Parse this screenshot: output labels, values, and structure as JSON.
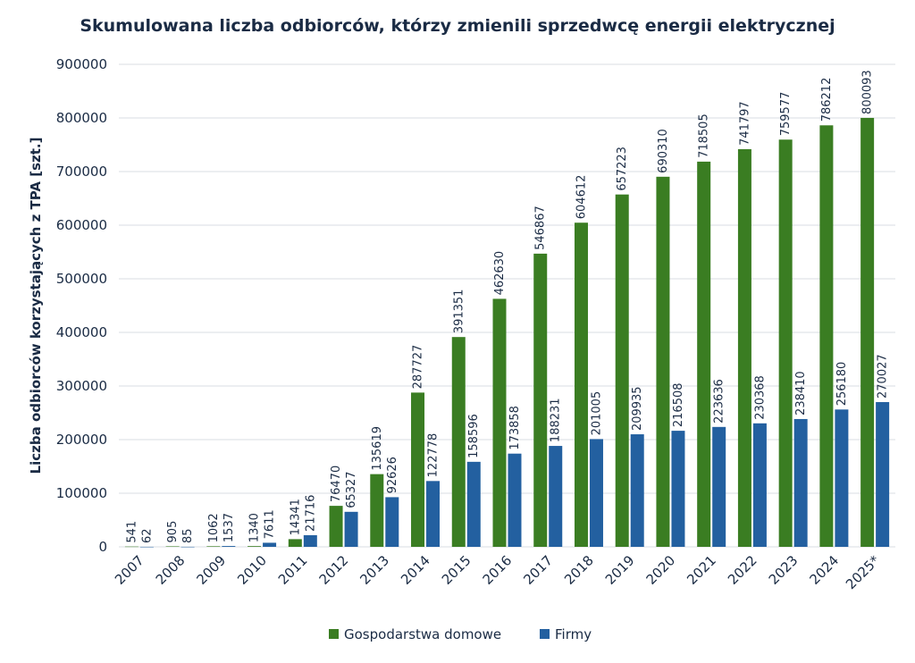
{
  "chart_data": {
    "type": "bar",
    "title": "Skumulowana liczba odbiorców, którzy zmienili sprzedwcę energii elektrycznej",
    "xlabel": "",
    "ylabel": "Liczba odbiorców korzystających z TPA [szt.]",
    "ylim": [
      0,
      900000
    ],
    "yticks": [
      "0",
      "100000",
      "200000",
      "300000",
      "400000",
      "500000",
      "600000",
      "700000",
      "800000",
      "900000"
    ],
    "grid": true,
    "legend_position": "bottom",
    "categories": [
      "2007",
      "2008",
      "2009",
      "2010",
      "2011",
      "2012",
      "2013",
      "2014",
      "2015",
      "2016",
      "2017",
      "2018",
      "2019",
      "2020",
      "2021",
      "2022",
      "2023",
      "2024",
      "2025*"
    ],
    "series": [
      {
        "name": "Gospodarstwa domowe",
        "color": "#3a7d22",
        "values": [
          541,
          905,
          1062,
          1340,
          14341,
          76470,
          135619,
          287727,
          391351,
          462630,
          546867,
          604612,
          657223,
          690310,
          718505,
          741797,
          759577,
          786212,
          800093
        ]
      },
      {
        "name": "Firmy",
        "color": "#2360a0",
        "values": [
          62,
          85,
          1537,
          7611,
          21716,
          65327,
          92626,
          122778,
          158596,
          173858,
          188231,
          201005,
          209935,
          216508,
          223636,
          230368,
          238410,
          256180,
          270027
        ]
      }
    ]
  }
}
